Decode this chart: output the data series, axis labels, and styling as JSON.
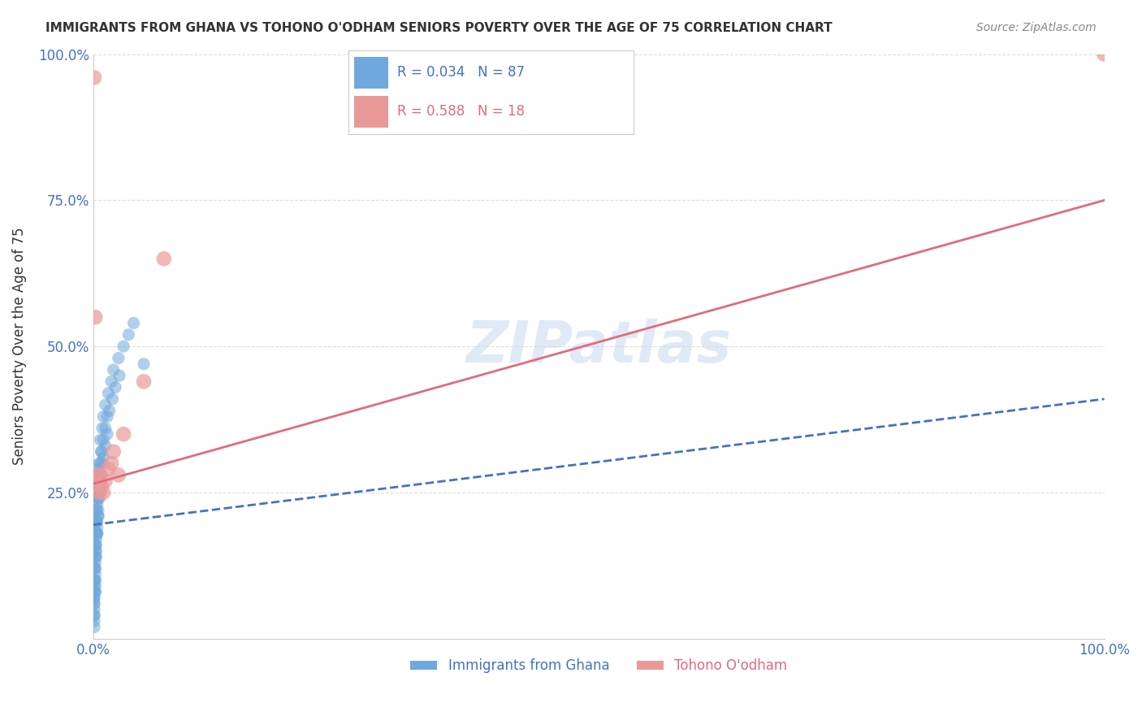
{
  "title": "IMMIGRANTS FROM GHANA VS TOHONO O'ODHAM SENIORS POVERTY OVER THE AGE OF 75 CORRELATION CHART",
  "source": "Source: ZipAtlas.com",
  "xlabel": "",
  "ylabel": "Seniors Poverty Over the Age of 75",
  "xlim": [
    0,
    1.0
  ],
  "ylim": [
    0,
    1.0
  ],
  "xticks": [
    0.0,
    0.25,
    0.5,
    0.75,
    1.0
  ],
  "yticks": [
    0.0,
    0.25,
    0.5,
    0.75,
    1.0
  ],
  "xticklabels": [
    "0.0%",
    "",
    "",
    "",
    "100.0%"
  ],
  "yticklabels": [
    "",
    "25.0%",
    "50.0%",
    "75.0%",
    "100.0%"
  ],
  "blue_label": "Immigrants from Ghana",
  "pink_label": "Tohono O'odham",
  "blue_R": "0.034",
  "blue_N": "87",
  "pink_R": "0.588",
  "pink_N": "18",
  "blue_color": "#6fa8dc",
  "pink_color": "#ea9999",
  "blue_line_color": "#4472c4",
  "pink_line_color": "#e06c7a",
  "title_color": "#333333",
  "axis_label_color": "#333333",
  "tick_color_blue": "#4472c4",
  "tick_color_pink": "#e06c7a",
  "watermark": "ZIPatlas",
  "background_color": "#ffffff",
  "grid_color": "#dddddd",
  "blue_scatter_x": [
    0.001,
    0.002,
    0.001,
    0.003,
    0.002,
    0.001,
    0.004,
    0.003,
    0.002,
    0.001,
    0.005,
    0.003,
    0.002,
    0.001,
    0.006,
    0.004,
    0.003,
    0.002,
    0.001,
    0.008,
    0.005,
    0.003,
    0.002,
    0.001,
    0.007,
    0.004,
    0.003,
    0.002,
    0.001,
    0.009,
    0.006,
    0.004,
    0.003,
    0.002,
    0.001,
    0.01,
    0.007,
    0.005,
    0.003,
    0.002,
    0.001,
    0.012,
    0.008,
    0.006,
    0.004,
    0.003,
    0.002,
    0.001,
    0.015,
    0.01,
    0.007,
    0.005,
    0.003,
    0.002,
    0.001,
    0.018,
    0.012,
    0.008,
    0.005,
    0.003,
    0.002,
    0.001,
    0.02,
    0.014,
    0.009,
    0.006,
    0.004,
    0.002,
    0.001,
    0.025,
    0.016,
    0.01,
    0.007,
    0.004,
    0.002,
    0.03,
    0.019,
    0.012,
    0.008,
    0.005,
    0.035,
    0.022,
    0.014,
    0.04,
    0.026,
    0.05,
    0.003
  ],
  "blue_scatter_y": [
    0.1,
    0.15,
    0.2,
    0.25,
    0.08,
    0.12,
    0.18,
    0.22,
    0.16,
    0.05,
    0.28,
    0.2,
    0.14,
    0.07,
    0.3,
    0.24,
    0.18,
    0.1,
    0.06,
    0.32,
    0.26,
    0.22,
    0.16,
    0.08,
    0.34,
    0.28,
    0.2,
    0.14,
    0.09,
    0.36,
    0.29,
    0.23,
    0.17,
    0.11,
    0.04,
    0.38,
    0.3,
    0.24,
    0.18,
    0.12,
    0.06,
    0.4,
    0.32,
    0.26,
    0.2,
    0.14,
    0.08,
    0.03,
    0.42,
    0.34,
    0.27,
    0.21,
    0.15,
    0.09,
    0.02,
    0.44,
    0.36,
    0.28,
    0.22,
    0.16,
    0.1,
    0.04,
    0.46,
    0.38,
    0.3,
    0.24,
    0.18,
    0.12,
    0.07,
    0.48,
    0.39,
    0.31,
    0.25,
    0.19,
    0.13,
    0.5,
    0.41,
    0.33,
    0.27,
    0.21,
    0.52,
    0.43,
    0.35,
    0.54,
    0.45,
    0.47,
    0.2
  ],
  "pink_scatter_x": [
    0.001,
    0.002,
    0.003,
    0.004,
    0.005,
    0.006,
    0.007,
    0.008,
    0.01,
    0.012,
    0.015,
    0.018,
    0.02,
    0.025,
    0.03,
    0.05,
    0.07,
    1.0
  ],
  "pink_scatter_y": [
    0.96,
    0.55,
    0.28,
    0.27,
    0.26,
    0.25,
    0.28,
    0.26,
    0.25,
    0.27,
    0.29,
    0.3,
    0.32,
    0.28,
    0.35,
    0.44,
    0.65,
    1.0
  ],
  "blue_trend_x": [
    0.0,
    1.0
  ],
  "blue_trend_y": [
    0.195,
    0.41
  ],
  "pink_trend_x": [
    0.0,
    1.0
  ],
  "pink_trend_y": [
    0.265,
    0.75
  ]
}
